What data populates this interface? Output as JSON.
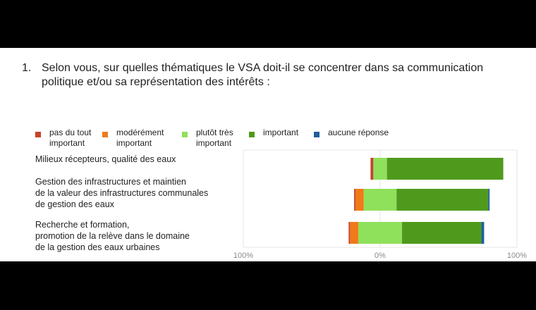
{
  "question": {
    "number": "1.",
    "text": "Selon vous, sur quelles thématiques le VSA doit-il se concentrer dans sa communication politique et/ou sa représentation des intérêts :"
  },
  "colors": {
    "pas_du_tout": "#c8412b",
    "modere": "#f07a1a",
    "plutot": "#8fe05a",
    "important": "#4f9a1d",
    "aucune": "#1f5f99"
  },
  "legend": [
    {
      "label_lines": [
        "pas du tout",
        "important"
      ],
      "color_key": "pas_du_tout"
    },
    {
      "label_lines": [
        "modérément",
        "important"
      ],
      "color_key": "modere"
    },
    {
      "label_lines": [
        "plutôt très",
        "important"
      ],
      "color_key": "plutot"
    },
    {
      "label_lines": [
        "important"
      ],
      "color_key": "important"
    },
    {
      "label_lines": [
        "aucune réponse"
      ],
      "color_key": "aucune"
    }
  ],
  "chart_data": {
    "type": "bar",
    "stacking": "diverging",
    "orientation": "horizontal",
    "categories": [
      [
        "Milieux récepteurs, qualité des eaux"
      ],
      [
        "Gestion des infrastructures et maintien",
        "de la valeur des infrastructures communales",
        "de gestion des eaux"
      ],
      [
        "Recherche et formation,",
        "promotion de la relève dans le domaine",
        "de la  gestion des eaux urbaines"
      ]
    ],
    "xlim": [
      -100,
      100
    ],
    "tick_labels": [
      "100%",
      "0%",
      "100%"
    ],
    "grid": true,
    "series": [
      {
        "name": "pas du tout important",
        "color_key": "pas_du_tout",
        "side": "negative",
        "values": [
          2,
          1,
          1
        ]
      },
      {
        "name": "modérément important",
        "color_key": "modere",
        "side": "negative",
        "values": [
          0,
          6,
          6
        ]
      },
      {
        "name": "plutôt très important",
        "color_key": "plutot",
        "side": "positive",
        "values": [
          5,
          12,
          16
        ]
      },
      {
        "name": "important",
        "color_key": "important",
        "side": "positive",
        "values": [
          85,
          67,
          58
        ]
      },
      {
        "name": "aucune réponse",
        "color_key": "aucune",
        "side": "positive",
        "values": [
          0,
          1,
          2
        ]
      }
    ],
    "negative_split": [
      {
        "plutot_left": 5
      },
      {
        "plutot_left": 12
      },
      {
        "plutot_left": 16
      }
    ]
  }
}
